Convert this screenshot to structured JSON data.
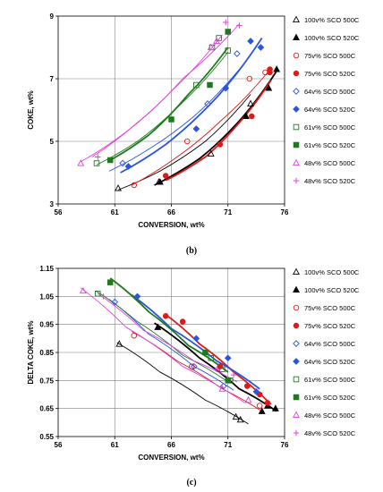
{
  "caption_b": "(b)",
  "caption_c": "(c)",
  "legend_labels": [
    "100v% SCO 500C",
    "100v% SCO 520C",
    "75v% SCO 500C",
    "75v% SCO 520C",
    "64v% SCO 500C",
    "64v% SCO 520C",
    "61v% SCO 500C",
    "61v% SCO 520C",
    "48v% SCO 500C",
    "48v% SCO 520C"
  ],
  "colors": {
    "s100": "#000000",
    "s75": "#e01818",
    "s64": "#2a55e0",
    "s61": "#1f7a1f",
    "s48": "#e040e0",
    "grid": "#808080"
  },
  "chart_data": [
    {
      "type": "scatter",
      "title": "",
      "xlabel": "CONVERSION, wt%",
      "ylabel": "COKE, wt%",
      "xlim": [
        56,
        76
      ],
      "ylim": [
        3,
        9
      ],
      "xticks": [
        56,
        61,
        66,
        71,
        76
      ],
      "yticks": [
        3,
        5,
        7,
        9
      ],
      "grid": true,
      "trendlines": true,
      "legend_position": "right",
      "series": [
        {
          "name": "100v% SCO 500C",
          "color": "#000000",
          "filled": false,
          "marker": "triangle",
          "x": [
            61.3,
            64.9,
            69.5,
            73.0
          ],
          "y": [
            3.5,
            3.7,
            4.6,
            6.2
          ],
          "fit": [
            [
              61.3,
              3.45
            ],
            [
              65,
              4.05
            ],
            [
              69,
              5.0
            ],
            [
              73,
              6.5
            ]
          ]
        },
        {
          "name": "100v% SCO 520C",
          "color": "#000000",
          "filled": true,
          "marker": "triangle",
          "x": [
            65.0,
            72.6,
            74.6,
            75.3
          ],
          "y": [
            3.7,
            5.8,
            6.7,
            7.3
          ],
          "fit": [
            [
              64.5,
              3.6
            ],
            [
              68.5,
              4.45
            ],
            [
              72,
              5.65
            ],
            [
              75.4,
              7.3
            ]
          ]
        },
        {
          "name": "75v% SCO 500C",
          "color": "#e01818",
          "filled": false,
          "marker": "circle",
          "x": [
            62.7,
            67.4,
            72.9,
            74.3
          ],
          "y": [
            3.6,
            5.0,
            7.0,
            7.2
          ],
          "fit": [
            [
              62.5,
              3.6
            ],
            [
              66.5,
              4.5
            ],
            [
              70.5,
              5.7
            ],
            [
              74.5,
              7.2
            ]
          ]
        },
        {
          "name": "75v% SCO 520C",
          "color": "#e01818",
          "filled": true,
          "marker": "circle",
          "x": [
            65.5,
            70.3,
            73.1,
            74.7,
            74.7
          ],
          "y": [
            3.9,
            4.9,
            5.8,
            7.2,
            7.3
          ],
          "fit": [
            [
              65.5,
              3.75
            ],
            [
              69,
              4.5
            ],
            [
              72,
              5.6
            ],
            [
              74.8,
              6.95
            ]
          ]
        },
        {
          "name": "64v% SCO 500C",
          "color": "#2a55e0",
          "filled": false,
          "marker": "diamond",
          "x": [
            61.7,
            69.2,
            70.8,
            71.8
          ],
          "y": [
            4.3,
            6.2,
            6.7,
            7.8
          ],
          "fit": [
            [
              60.5,
              4.05
            ],
            [
              64,
              4.75
            ],
            [
              68,
              5.8
            ],
            [
              72,
              7.3
            ]
          ]
        },
        {
          "name": "64v% SCO 520C",
          "color": "#2a55e0",
          "filled": true,
          "marker": "diamond",
          "x": [
            62.2,
            68.2,
            70.8,
            73.0,
            73.9
          ],
          "y": [
            4.2,
            5.4,
            6.7,
            8.2,
            8.0
          ],
          "fit": [
            [
              61.5,
              4.0
            ],
            [
              65.5,
              4.9
            ],
            [
              70,
              6.4
            ],
            [
              74,
              8.3
            ]
          ]
        },
        {
          "name": "61v% SCO 500C",
          "color": "#1f7a1f",
          "filled": false,
          "marker": "square",
          "x": [
            59.4,
            68.2,
            69.6,
            70.2,
            71.0
          ],
          "y": [
            4.3,
            6.8,
            8.0,
            8.3,
            7.9
          ],
          "fit": [
            [
              59.4,
              4.25
            ],
            [
              63,
              5.0
            ],
            [
              67,
              6.25
            ],
            [
              71,
              7.85
            ]
          ]
        },
        {
          "name": "61v% SCO 520C",
          "color": "#1f7a1f",
          "filled": true,
          "marker": "square",
          "x": [
            60.6,
            66.0,
            69.4,
            71.0
          ],
          "y": [
            4.4,
            5.7,
            6.8,
            8.5
          ],
          "fit": [
            [
              60.6,
              4.4
            ],
            [
              64,
              5.2
            ],
            [
              67.5,
              6.5
            ],
            [
              71,
              8.0
            ]
          ]
        },
        {
          "name": "48v% SCO 500C",
          "color": "#e040e0",
          "filled": false,
          "marker": "triangle",
          "x": [
            58.0,
            69.5,
            70.0
          ],
          "y": [
            4.3,
            8.0,
            8.2
          ],
          "fit": [
            [
              58,
              4.35
            ],
            [
              62,
              5.3
            ],
            [
              66,
              6.6
            ],
            [
              70.5,
              8.4
            ]
          ]
        },
        {
          "name": "48v% SCO 520C",
          "color": "#e040e0",
          "filled": false,
          "marker": "plus",
          "x": [
            59.5,
            70.8,
            72.0
          ],
          "y": [
            4.5,
            8.8,
            8.7
          ],
          "fit": [
            [
              59,
              4.5
            ],
            [
              63,
              5.6
            ],
            [
              67,
              7.0
            ],
            [
              72,
              8.75
            ]
          ]
        }
      ]
    },
    {
      "type": "scatter",
      "title": "",
      "xlabel": "CONVERSION, wt%",
      "ylabel": "DELTA COKE, wt%",
      "xlim": [
        56,
        76
      ],
      "ylim": [
        0.55,
        1.15
      ],
      "xticks": [
        56,
        61,
        66,
        71,
        76
      ],
      "yticks": [
        0.55,
        0.65,
        0.75,
        0.85,
        0.95,
        1.05,
        1.15
      ],
      "grid": true,
      "trendlines": true,
      "legend_position": "right",
      "series": [
        {
          "name": "100v% SCO 500C",
          "color": "#000000",
          "filled": false,
          "marker": "triangle",
          "x": [
            61.4,
            71.7,
            72.1
          ],
          "y": [
            0.88,
            0.62,
            0.61
          ],
          "fit": [
            [
              61.2,
              0.885
            ],
            [
              65,
              0.78
            ],
            [
              69,
              0.68
            ],
            [
              72.8,
              0.595
            ]
          ]
        },
        {
          "name": "100v% SCO 520C",
          "color": "#000000",
          "filled": true,
          "marker": "triangle",
          "x": [
            64.8,
            74.0,
            74.5,
            75.2
          ],
          "y": [
            0.94,
            0.64,
            0.66,
            0.65
          ],
          "fit": [
            [
              64.5,
              0.955
            ],
            [
              68.5,
              0.83
            ],
            [
              72,
              0.72
            ],
            [
              75.3,
              0.64
            ]
          ]
        },
        {
          "name": "75v% SCO 500C",
          "color": "#e01818",
          "filled": false,
          "marker": "circle",
          "x": [
            62.7,
            67.8,
            73.8
          ],
          "y": [
            0.91,
            0.8,
            0.66
          ],
          "fit": [
            [
              62.5,
              0.925
            ],
            [
              66.5,
              0.82
            ],
            [
              70.5,
              0.72
            ],
            [
              74,
              0.64
            ]
          ]
        },
        {
          "name": "75v% SCO 520C",
          "color": "#e01818",
          "filled": true,
          "marker": "circle",
          "x": [
            65.5,
            67.0,
            70.3,
            72.7,
            73.8,
            74.5
          ],
          "y": [
            0.98,
            0.96,
            0.8,
            0.73,
            0.7,
            0.67
          ],
          "fit": [
            [
              65.5,
              0.985
            ],
            [
              68.5,
              0.88
            ],
            [
              71.5,
              0.78
            ],
            [
              74.8,
              0.665
            ]
          ]
        },
        {
          "name": "64v% SCO 500C",
          "color": "#2a55e0",
          "filled": false,
          "marker": "diamond",
          "x": [
            61.0,
            68.0,
            70.6
          ],
          "y": [
            1.03,
            0.8,
            0.73
          ],
          "fit": [
            [
              60.5,
              1.04
            ],
            [
              64,
              0.915
            ],
            [
              68,
              0.8
            ],
            [
              71.5,
              0.715
            ]
          ]
        },
        {
          "name": "64v% SCO 520C",
          "color": "#2a55e0",
          "filled": true,
          "marker": "diamond",
          "x": [
            63.0,
            68.2,
            71.0,
            73.5
          ],
          "y": [
            1.05,
            0.9,
            0.83,
            0.71
          ],
          "fit": [
            [
              62.5,
              1.055
            ],
            [
              66,
              0.935
            ],
            [
              70,
              0.82
            ],
            [
              73.8,
              0.72
            ]
          ]
        },
        {
          "name": "61v% SCO 500C",
          "color": "#1f7a1f",
          "filled": false,
          "marker": "square",
          "x": [
            59.5,
            69.5,
            70.5,
            71.2
          ],
          "y": [
            1.06,
            0.83,
            0.79,
            0.75
          ],
          "fit": [
            [
              59.3,
              1.07
            ],
            [
              63,
              0.96
            ],
            [
              67,
              0.84
            ],
            [
              71.2,
              0.74
            ]
          ]
        },
        {
          "name": "61v% SCO 520C",
          "color": "#1f7a1f",
          "filled": true,
          "marker": "square",
          "x": [
            60.6,
            69.0,
            71.0
          ],
          "y": [
            1.1,
            0.85,
            0.75
          ],
          "fit": [
            [
              60.6,
              1.115
            ],
            [
              64,
              0.995
            ],
            [
              67.5,
              0.875
            ],
            [
              71,
              0.78
            ]
          ]
        },
        {
          "name": "48v% SCO 500C",
          "color": "#e040e0",
          "filled": false,
          "marker": "triangle",
          "x": [
            58.2,
            70.5,
            72.8
          ],
          "y": [
            1.07,
            0.72,
            0.68
          ],
          "fit": [
            [
              58,
              1.08
            ],
            [
              62,
              0.94
            ],
            [
              67,
              0.8
            ],
            [
              72.5,
              0.67
            ]
          ]
        },
        {
          "name": "48v% SCO 520C",
          "color": "#e040e0",
          "filled": false,
          "marker": "plus",
          "x": [
            60.0,
            70.0,
            71.5
          ],
          "y": [
            1.05,
            0.79,
            0.77
          ],
          "fit": [
            [
              59.5,
              1.06
            ],
            [
              63.5,
              0.93
            ],
            [
              68,
              0.82
            ],
            [
              71.8,
              0.745
            ]
          ]
        }
      ]
    }
  ]
}
